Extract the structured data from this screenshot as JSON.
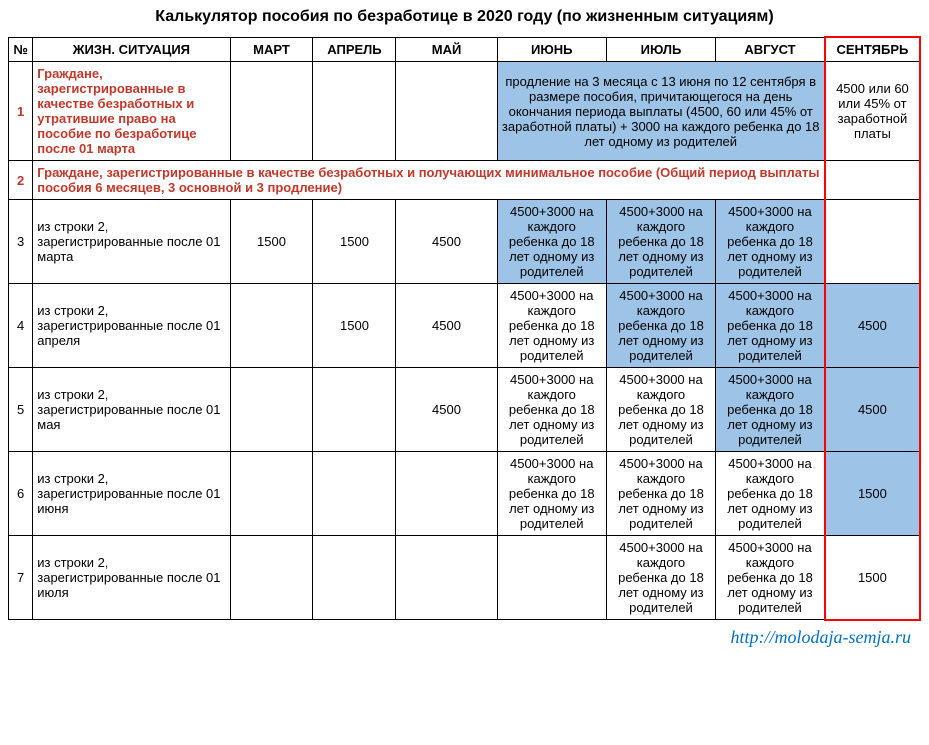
{
  "title": "Калькулятор пособия по безработице в 2020 году (по жизненным ситуациям)",
  "columns": [
    "№",
    "ЖИЗН. СИТУАЦИЯ",
    "МАРТ",
    "АПРЕЛЬ",
    "МАЙ",
    "ИЮНЬ",
    "ИЮЛЬ",
    "АВГУСТ",
    "СЕНТЯБРЬ"
  ],
  "row1": {
    "num": "1",
    "sit": "Граждане, зарегистрированные в качестве безработных и утратившие право на пособие по безработице после 01 марта",
    "merged_text": "продление на 3 месяца с 13 июня по 12 сентября в размере пособия, причитающегося на день окончания периода выплаты (4500, 60 или 45% от заработной платы) + 3000 на каждого ребенка до 18 лет одному из родителей",
    "sep": "4500 или 60 или 45% от заработной платы"
  },
  "row2": {
    "num": "2",
    "text": "Граждане, зарегистрированные в качестве безработных и получающих минимальное пособие (Общий период выплаты пособия 6 месяцев, 3 основной и 3 продление)"
  },
  "childtext": "4500+3000 на каждого ребенка до 18 лет одному из родителей",
  "row3": {
    "num": "3",
    "sit": "из строки 2, зарегистрированные после 01 марта",
    "mar": "1500",
    "apr": "1500",
    "may": "4500"
  },
  "row4": {
    "num": "4",
    "sit": "из строки 2, зарегистрированные после 01 апреля",
    "apr": "1500",
    "may": "4500",
    "sep": "4500"
  },
  "row5": {
    "num": "5",
    "sit": "из строки 2, зарегистрированные после 01 мая",
    "may": "4500",
    "sep": "4500"
  },
  "row6": {
    "num": "6",
    "sit": "из строки 2, зарегистрированные после 01 июня",
    "sep": "1500"
  },
  "row7": {
    "num": "7",
    "sit": "из строки 2, зарегистрированные после 01 июля",
    "sep": "1500"
  },
  "footer": "http://molodaja-semja.ru",
  "colors": {
    "highlight_bg": "#9dc3e6",
    "orange_text": "#c0392b",
    "red_border": "#ff0000",
    "link": "#0070c0"
  }
}
